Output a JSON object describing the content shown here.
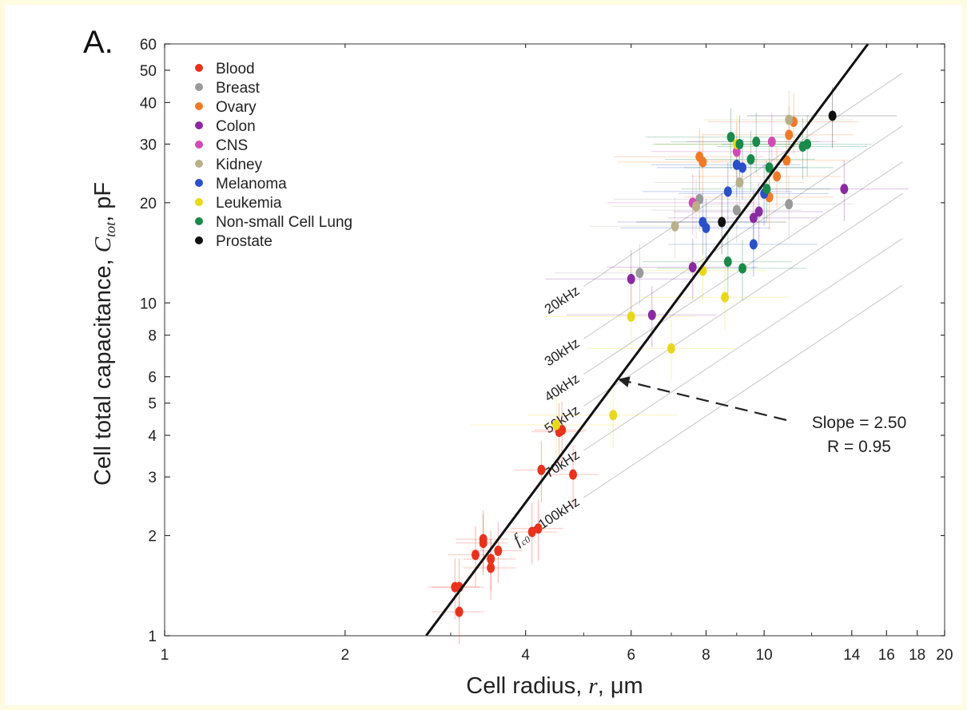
{
  "colors": {
    "Blood": "#e8321e",
    "Breast": "#9a9a9a",
    "Ovary": "#f07a28",
    "Colon": "#8a2aa0",
    "CNS": "#d24ab6",
    "Kidney": "#b8b08a",
    "Melanoma": "#2a50c8",
    "Leukemia": "#e8d81c",
    "Non-small Cell Lung": "#1a8a4a",
    "Prostate": "#111111"
  },
  "chart_data": {
    "type": "scatter",
    "panel_label": "A.",
    "xlabel_main": "Cell radius, ",
    "xlabel_var": "r",
    "xlabel_unit": ", μm",
    "ylabel_main": "Cell total capacitance, ",
    "ylabel_var": "C",
    "ylabel_sub": "tot",
    "ylabel_unit": ", pF",
    "x_scale": "log",
    "y_scale": "log",
    "xlim": [
      1,
      20
    ],
    "ylim": [
      1,
      60
    ],
    "x_ticks": [
      1,
      2,
      4,
      6,
      8,
      10,
      14,
      16,
      18,
      20
    ],
    "x_tick_labels": [
      "1",
      "2",
      "4",
      "6",
      "8",
      "10",
      "14",
      "16",
      "18",
      "20"
    ],
    "x_minor_ticks": [
      3,
      5,
      7,
      9,
      12
    ],
    "y_ticks": [
      1,
      2,
      3,
      4,
      5,
      6,
      8,
      10,
      20,
      30,
      40,
      50,
      60
    ],
    "y_tick_labels": [
      "1",
      "2",
      "3",
      "4",
      "5",
      "6",
      "8",
      "10",
      "20",
      "30",
      "40",
      "50",
      "60"
    ],
    "legend_position": "top-left",
    "legend": [
      "Blood",
      "Breast",
      "Ovary",
      "Colon",
      "CNS",
      "Kidney",
      "Melanoma",
      "Leukemia",
      "Non-small Cell Lung",
      "Prostate"
    ],
    "fit_line": {
      "slope": 2.5,
      "x": [
        2.73,
        14.9
      ],
      "y": [
        1,
        60
      ]
    },
    "frequency_lines": [
      {
        "label": "20kHz",
        "x": [
          5,
          17.0
        ],
        "y": [
          11.2,
          49.0
        ]
      },
      {
        "label": "30kHz",
        "x": [
          5,
          17.0
        ],
        "y": [
          7.8,
          34.0
        ]
      },
      {
        "label": "40kHz",
        "x": [
          5,
          17.0
        ],
        "y": [
          6.1,
          26.5
        ]
      },
      {
        "label": "50kHz",
        "x": [
          5,
          17.0
        ],
        "y": [
          4.9,
          21.3
        ]
      },
      {
        "label": "70kHz",
        "x": [
          5,
          17.0
        ],
        "y": [
          3.6,
          15.6
        ]
      },
      {
        "label": "100kHz",
        "x": [
          5,
          17.0
        ],
        "y": [
          2.6,
          11.3
        ]
      }
    ],
    "freq_label_prefix": "f",
    "freq_label_sub": "c0",
    "freq_label_suffix": " = 100kHz",
    "annotation": {
      "line1": "Slope = 2.50",
      "line2": "R = 0.95",
      "arrow_to": [
        5.7,
        5.9
      ]
    },
    "series": [
      {
        "name": "Blood",
        "points": [
          [
            3.05,
            1.4
          ],
          [
            3.1,
            1.4
          ],
          [
            3.1,
            1.18
          ],
          [
            3.3,
            1.75
          ],
          [
            3.4,
            1.95
          ],
          [
            3.4,
            1.9
          ],
          [
            3.5,
            1.6
          ],
          [
            3.5,
            1.7
          ],
          [
            3.6,
            1.8
          ],
          [
            4.1,
            2.05
          ],
          [
            4.2,
            2.1
          ],
          [
            4.25,
            3.15
          ],
          [
            4.55,
            4.1
          ],
          [
            4.6,
            4.15
          ],
          [
            4.8,
            3.05
          ]
        ]
      },
      {
        "name": "Breast",
        "points": [
          [
            6.2,
            12.3
          ],
          [
            7.8,
            20.5
          ],
          [
            9.0,
            19.0
          ],
          [
            11.0,
            19.8
          ]
        ]
      },
      {
        "name": "Ovary",
        "points": [
          [
            7.8,
            27.5
          ],
          [
            7.9,
            26.5
          ],
          [
            10.2,
            20.8
          ],
          [
            10.5,
            24.0
          ],
          [
            10.9,
            26.8
          ],
          [
            11.0,
            32.0
          ],
          [
            11.2,
            35.0
          ]
        ]
      },
      {
        "name": "Colon",
        "points": [
          [
            6.0,
            11.8
          ],
          [
            6.5,
            9.2
          ],
          [
            7.6,
            12.8
          ],
          [
            9.6,
            18.0
          ],
          [
            9.8,
            18.8
          ],
          [
            13.6,
            22.0
          ]
        ]
      },
      {
        "name": "CNS",
        "points": [
          [
            7.6,
            20.0
          ],
          [
            9.0,
            28.5
          ],
          [
            10.3,
            30.5
          ]
        ]
      },
      {
        "name": "Kidney",
        "points": [
          [
            7.1,
            17.0
          ],
          [
            7.7,
            19.5
          ],
          [
            9.1,
            23.0
          ],
          [
            11.0,
            35.5
          ]
        ]
      },
      {
        "name": "Melanoma",
        "points": [
          [
            7.9,
            17.5
          ],
          [
            8.0,
            16.8
          ],
          [
            8.7,
            21.6
          ],
          [
            9.0,
            26.0
          ],
          [
            9.2,
            25.5
          ],
          [
            9.6,
            15.0
          ],
          [
            10.0,
            21.3
          ]
        ]
      },
      {
        "name": "Leukemia",
        "points": [
          [
            4.5,
            4.3
          ],
          [
            5.6,
            4.6
          ],
          [
            6.0,
            9.1
          ],
          [
            7.0,
            7.3
          ],
          [
            7.9,
            12.5
          ],
          [
            8.6,
            10.4
          ],
          [
            9.0,
            30.0
          ]
        ]
      },
      {
        "name": "Non-small Cell Lung",
        "points": [
          [
            8.7,
            13.3
          ],
          [
            8.8,
            31.5
          ],
          [
            9.1,
            30.0
          ],
          [
            9.2,
            12.7
          ],
          [
            9.5,
            27.0
          ],
          [
            9.7,
            30.5
          ],
          [
            10.1,
            22.0
          ],
          [
            10.2,
            25.5
          ],
          [
            11.6,
            29.5
          ],
          [
            11.8,
            30.0
          ]
        ]
      },
      {
        "name": "Prostate",
        "points": [
          [
            8.5,
            17.5
          ],
          [
            13.0,
            36.5
          ]
        ]
      }
    ]
  }
}
